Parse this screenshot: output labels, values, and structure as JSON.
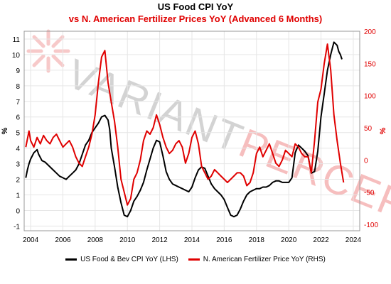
{
  "chart_data": {
    "type": "line",
    "title": "US Food CPI YoY",
    "subtitle": "vs N. American Fertilizer Prices YoY (Advanced 6 Months)",
    "watermark": "VARIANT PERCEPTION",
    "left_axis": {
      "label": "%",
      "ylim": [
        -1.3,
        11.5
      ],
      "ticks": [
        -1,
        0,
        1,
        2,
        3,
        4,
        5,
        6,
        7,
        8,
        9,
        10,
        11
      ]
    },
    "right_axis": {
      "label": "%",
      "ylim": [
        -110,
        200
      ],
      "ticks": [
        -100,
        -50,
        0,
        50,
        100,
        150,
        200
      ]
    },
    "x_axis": {
      "xlim": [
        2003.6,
        2024.4
      ],
      "ticks": [
        2004,
        2006,
        2008,
        2010,
        2012,
        2014,
        2016,
        2018,
        2020,
        2022,
        2024
      ]
    },
    "grid": true,
    "legend_position": "bottom",
    "colors": {
      "lhs": "#000000",
      "rhs": "#e00000",
      "watermark_gray": "#c8c8c8",
      "watermark_red": "#f4b4b4"
    },
    "series": [
      {
        "name": "US Food & Bev CPI YoY (LHS)",
        "axis": "left",
        "x": [
          2003.7,
          2003.8,
          2003.9,
          2004.0,
          2004.2,
          2004.4,
          2004.5,
          2004.7,
          2004.9,
          2005.0,
          2005.2,
          2005.4,
          2005.6,
          2005.8,
          2006.0,
          2006.2,
          2006.4,
          2006.6,
          2006.8,
          2007.0,
          2007.2,
          2007.4,
          2007.6,
          2007.8,
          2008.0,
          2008.2,
          2008.4,
          2008.6,
          2008.8,
          2008.9,
          2009.0,
          2009.2,
          2009.4,
          2009.6,
          2009.8,
          2010.0,
          2010.2,
          2010.4,
          2010.6,
          2010.8,
          2011.0,
          2011.2,
          2011.4,
          2011.6,
          2011.8,
          2012.0,
          2012.2,
          2012.4,
          2012.6,
          2012.8,
          2013.0,
          2013.2,
          2013.4,
          2013.6,
          2013.8,
          2014.0,
          2014.2,
          2014.4,
          2014.6,
          2014.8,
          2015.0,
          2015.2,
          2015.4,
          2015.6,
          2015.8,
          2016.0,
          2016.2,
          2016.4,
          2016.6,
          2016.8,
          2017.0,
          2017.2,
          2017.4,
          2017.6,
          2017.8,
          2018.0,
          2018.2,
          2018.4,
          2018.6,
          2018.8,
          2019.0,
          2019.2,
          2019.4,
          2019.6,
          2019.8,
          2020.0,
          2020.2,
          2020.4,
          2020.6,
          2020.8,
          2021.0,
          2021.2,
          2021.4,
          2021.6,
          2021.8,
          2022.0,
          2022.2,
          2022.4,
          2022.6,
          2022.8,
          2023.0,
          2023.1,
          2023.2,
          2023.3
        ],
        "values": [
          2.1,
          2.6,
          3.0,
          3.3,
          3.7,
          3.9,
          3.6,
          3.2,
          3.1,
          3.0,
          2.8,
          2.6,
          2.4,
          2.2,
          2.1,
          2.0,
          2.2,
          2.4,
          2.6,
          3.0,
          3.6,
          4.2,
          4.5,
          5.0,
          5.3,
          5.6,
          6.0,
          6.1,
          5.8,
          5.2,
          4.0,
          2.8,
          1.5,
          0.5,
          -0.3,
          -0.4,
          0.0,
          0.6,
          0.9,
          1.3,
          1.8,
          2.6,
          3.3,
          4.0,
          4.5,
          4.4,
          3.5,
          2.5,
          2.0,
          1.7,
          1.6,
          1.5,
          1.4,
          1.3,
          1.2,
          1.5,
          2.1,
          2.6,
          2.8,
          2.7,
          2.2,
          1.7,
          1.4,
          1.2,
          1.0,
          0.7,
          0.2,
          -0.3,
          -0.4,
          -0.3,
          0.1,
          0.6,
          1.0,
          1.2,
          1.3,
          1.4,
          1.4,
          1.5,
          1.5,
          1.6,
          1.8,
          1.9,
          1.9,
          1.8,
          1.8,
          1.8,
          2.1,
          3.7,
          4.2,
          4.0,
          3.8,
          3.5,
          2.4,
          2.5,
          3.8,
          6.0,
          7.5,
          9.0,
          10.0,
          10.8,
          10.6,
          10.2,
          10.0,
          9.7
        ]
      },
      {
        "name": "N. American Fertilizer Price YoY (RHS)",
        "axis": "right",
        "x": [
          2003.7,
          2003.9,
          2004.0,
          2004.2,
          2004.4,
          2004.6,
          2004.8,
          2005.0,
          2005.2,
          2005.4,
          2005.6,
          2005.8,
          2006.0,
          2006.2,
          2006.4,
          2006.6,
          2006.8,
          2007.0,
          2007.2,
          2007.4,
          2007.6,
          2007.8,
          2008.0,
          2008.2,
          2008.4,
          2008.6,
          2008.8,
          2009.0,
          2009.2,
          2009.4,
          2009.6,
          2009.8,
          2010.0,
          2010.2,
          2010.4,
          2010.6,
          2010.8,
          2011.0,
          2011.2,
          2011.4,
          2011.6,
          2011.8,
          2012.0,
          2012.2,
          2012.4,
          2012.6,
          2012.8,
          2013.0,
          2013.2,
          2013.4,
          2013.6,
          2013.8,
          2014.0,
          2014.2,
          2014.4,
          2014.6,
          2014.8,
          2015.0,
          2015.2,
          2015.4,
          2015.6,
          2015.8,
          2016.0,
          2016.2,
          2016.4,
          2016.6,
          2016.8,
          2017.0,
          2017.2,
          2017.4,
          2017.6,
          2017.8,
          2018.0,
          2018.2,
          2018.4,
          2018.6,
          2018.8,
          2019.0,
          2019.2,
          2019.4,
          2019.6,
          2019.8,
          2020.0,
          2020.2,
          2020.4,
          2020.6,
          2020.8,
          2021.0,
          2021.2,
          2021.4,
          2021.6,
          2021.8,
          2022.0,
          2022.2,
          2022.4,
          2022.6,
          2022.8,
          2023.0,
          2023.2,
          2023.4
        ],
        "values": [
          20,
          45,
          30,
          20,
          35,
          25,
          38,
          30,
          25,
          35,
          40,
          30,
          20,
          25,
          30,
          20,
          5,
          -5,
          -10,
          5,
          20,
          40,
          70,
          120,
          160,
          170,
          120,
          90,
          60,
          20,
          -30,
          -50,
          -70,
          -60,
          -30,
          -20,
          0,
          30,
          45,
          40,
          50,
          70,
          55,
          35,
          20,
          10,
          15,
          25,
          30,
          20,
          -5,
          10,
          35,
          45,
          25,
          -10,
          -20,
          -30,
          -25,
          -15,
          -20,
          -25,
          -30,
          -35,
          -30,
          -25,
          -20,
          -20,
          -25,
          -40,
          -35,
          -20,
          10,
          20,
          5,
          15,
          25,
          10,
          -5,
          -10,
          0,
          15,
          10,
          5,
          25,
          20,
          10,
          5,
          5,
          -20,
          30,
          90,
          110,
          150,
          180,
          140,
          70,
          30,
          -5,
          -35
        ]
      }
    ]
  }
}
